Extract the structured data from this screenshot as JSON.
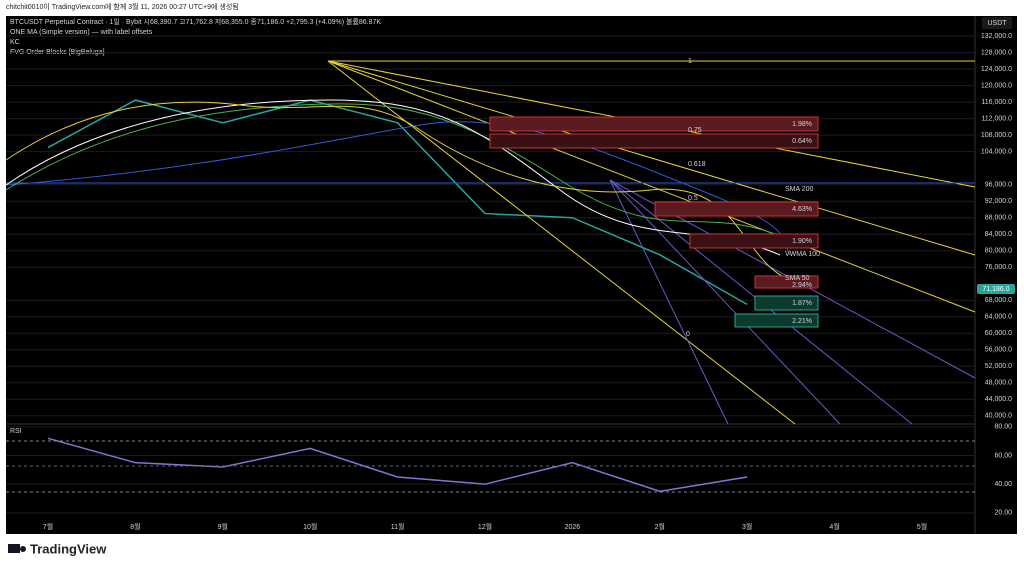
{
  "header": {
    "author_line": "chitchit0010이 TradingView.com에 함께 3월 11, 2026 00:27 UTC+9에 생성됨",
    "symbol_line": "BTCUSDT Perpetual Contract · 1일 · Bybit  시68,390.7 고71,762.8 저68,355.0 종71,186.0 +2,795.3 (+4.09%) 볼륨86.87K",
    "indicators": [
      "ONE MA (Simple version) — with label offsets",
      "KC",
      "FVG Order Blocks [BigBeluga]"
    ],
    "currency": "USDT"
  },
  "overlay_labels": [
    "SMA 200",
    "VWMA 100",
    "SMA 50",
    "1.98%",
    "0.64%",
    "4.63%",
    "1.90%",
    "2.94%",
    "1.87%",
    "2.21%",
    "1",
    "0.75",
    "0.618",
    "0.5",
    "0"
  ],
  "footer": {
    "brand": "TradingView"
  },
  "chart_data": [
    {
      "type": "line",
      "categories": [
        "7월",
        "8월",
        "9월",
        "10월",
        "11월",
        "12월",
        "2026",
        "2월",
        "3월",
        "4월",
        "5월"
      ],
      "values": [
        105000,
        116500,
        111000,
        116500,
        111000,
        89000,
        88000,
        79000,
        67000,
        null,
        null
      ],
      "color": "#26a69a",
      "last_price_label": "71,186.0",
      "ylim": [
        38000,
        136400
      ],
      "yticks": [
        {
          "value": 132000,
          "label": "132,000.0"
        },
        {
          "value": 128000,
          "label": "128,000.0"
        },
        {
          "value": 124000,
          "label": "124,000.0"
        },
        {
          "value": 120000,
          "label": "120,000.0"
        },
        {
          "value": 116000,
          "label": "116,000.0"
        },
        {
          "value": 112000,
          "label": "112,000.0"
        },
        {
          "value": 108000,
          "label": "108,000.0"
        },
        {
          "value": 104000,
          "label": "104,000.0"
        },
        {
          "value": 96000,
          "label": "96,000.0"
        },
        {
          "value": 92000,
          "label": "92,000.0"
        },
        {
          "value": 88000,
          "label": "88,000.0"
        },
        {
          "value": 84000,
          "label": "84,000.0"
        },
        {
          "value": 80000,
          "label": "80,000.0"
        },
        {
          "value": 76000,
          "label": "76,000.0"
        },
        {
          "value": 68000,
          "label": "68,000.0"
        },
        {
          "value": 64000,
          "label": "64,000.0"
        },
        {
          "value": 60000,
          "label": "60,000.0"
        },
        {
          "value": 56000,
          "label": "56,000.0"
        },
        {
          "value": 52000,
          "label": "52,000.0"
        },
        {
          "value": 48000,
          "label": "48,000.0"
        },
        {
          "value": 44000,
          "label": "44,000.0"
        },
        {
          "value": 40000,
          "label": "40,000.0"
        }
      ],
      "grid": true
    },
    {
      "type": "line",
      "title": "RSI",
      "values": [
        72,
        55,
        52,
        65,
        45,
        40,
        55,
        35,
        45,
        null,
        null
      ],
      "color": "#8e6fd8",
      "ylim": [
        15,
        82
      ],
      "yticks": [
        {
          "value": 80,
          "label": "80.00"
        },
        {
          "value": 60,
          "label": "60.00"
        },
        {
          "value": 40,
          "label": "40.00"
        },
        {
          "value": 20,
          "label": "20.00"
        }
      ],
      "grid": true
    }
  ]
}
